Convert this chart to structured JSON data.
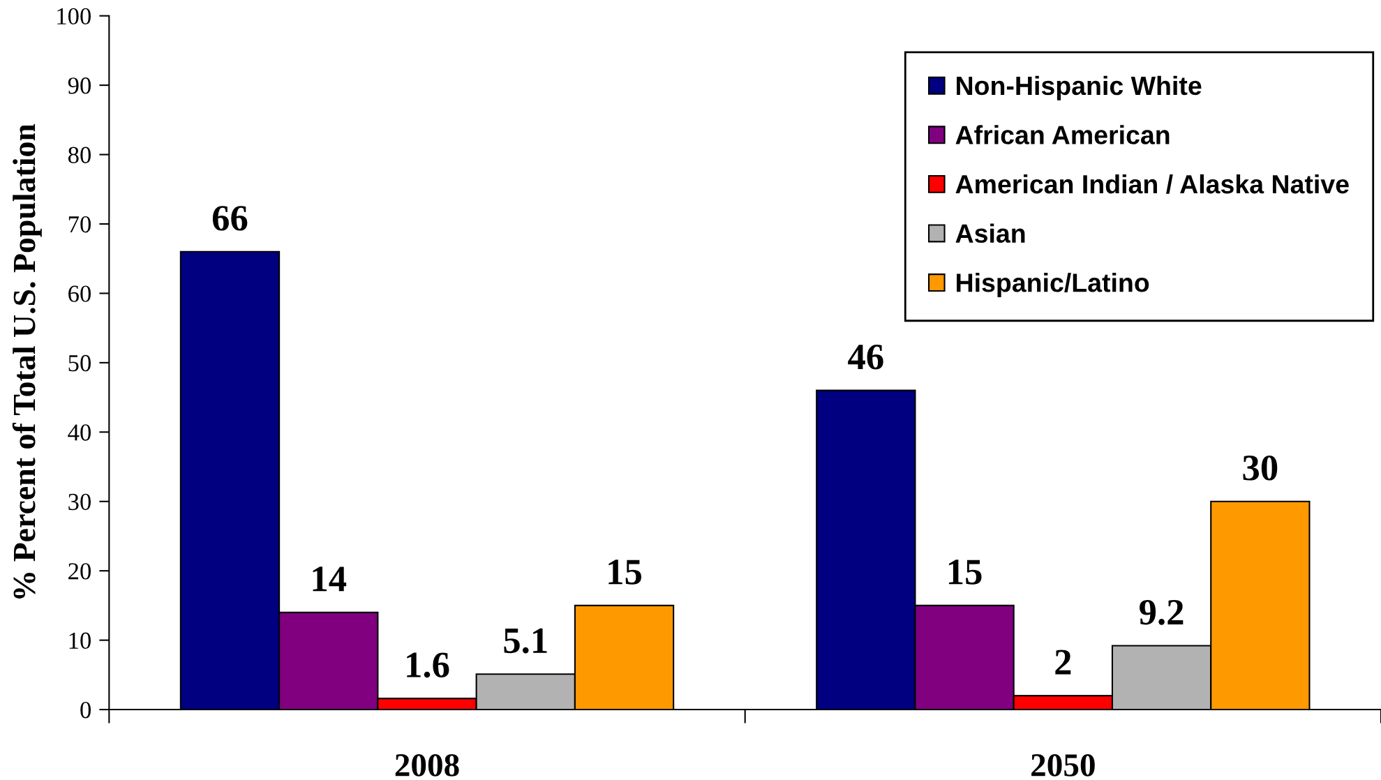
{
  "chart_data": {
    "type": "bar",
    "ylabel": "% Percent of Total U.S. Population",
    "categories": [
      "2008",
      "2050"
    ],
    "series": [
      {
        "name": "Non-Hispanic White",
        "color": "#000080",
        "values": [
          66,
          46
        ]
      },
      {
        "name": "African American",
        "color": "#800080",
        "values": [
          14,
          15
        ]
      },
      {
        "name": "American Indian / Alaska Native",
        "color": "#ff0000",
        "values": [
          1.6,
          2
        ]
      },
      {
        "name": "Asian",
        "color": "#b2b2b2",
        "values": [
          5.1,
          9.2
        ]
      },
      {
        "name": "Hispanic/Latino",
        "color": "#ff9900",
        "values": [
          15,
          30
        ]
      }
    ],
    "ylim": [
      0,
      100
    ],
    "yticks": [
      0,
      10,
      20,
      30,
      40,
      50,
      60,
      70,
      80,
      90,
      100
    ],
    "data_labels": true,
    "legend": "top right"
  }
}
